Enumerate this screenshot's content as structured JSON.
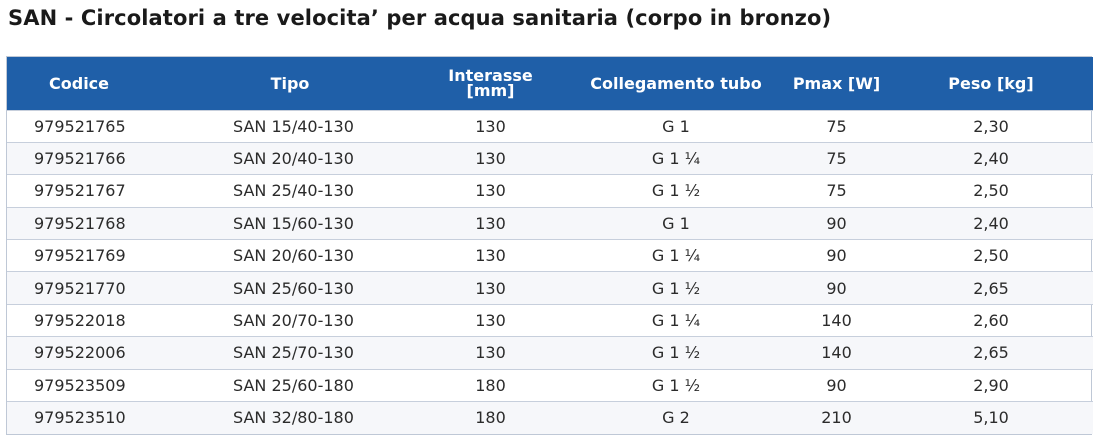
{
  "title": "SAN - Circolatori a tre velocita’ per acqua sanitaria (corpo in bronzo)",
  "table": {
    "headers": {
      "codice": "Codice",
      "tipo": "Tipo",
      "interasse_line1": "Interasse",
      "interasse_line2": "[mm]",
      "collegamento": "Collegamento tubo",
      "pmax": "Pmax [W]",
      "peso": "Peso [kg]"
    },
    "rows": [
      {
        "codice": "979521765",
        "tipo": "SAN 15/40-130",
        "interasse": "130",
        "collegamento": "G 1",
        "pmax": "75",
        "peso": "2,30"
      },
      {
        "codice": "979521766",
        "tipo": "SAN 20/40-130",
        "interasse": "130",
        "collegamento": "G 1 ¼",
        "pmax": "75",
        "peso": "2,40"
      },
      {
        "codice": "979521767",
        "tipo": "SAN 25/40-130",
        "interasse": "130",
        "collegamento": "G 1 ½",
        "pmax": "75",
        "peso": "2,50"
      },
      {
        "codice": "979521768",
        "tipo": "SAN 15/60-130",
        "interasse": "130",
        "collegamento": "G 1",
        "pmax": "90",
        "peso": "2,40"
      },
      {
        "codice": "979521769",
        "tipo": "SAN 20/60-130",
        "interasse": "130",
        "collegamento": "G 1 ¼",
        "pmax": "90",
        "peso": "2,50"
      },
      {
        "codice": "979521770",
        "tipo": "SAN 25/60-130",
        "interasse": "130",
        "collegamento": "G 1 ½",
        "pmax": "90",
        "peso": "2,65"
      },
      {
        "codice": "979522018",
        "tipo": "SAN 20/70-130",
        "interasse": "130",
        "collegamento": "G 1 ¼",
        "pmax": "140",
        "peso": "2,60"
      },
      {
        "codice": "979522006",
        "tipo": "SAN 25/70-130",
        "interasse": "130",
        "collegamento": "G 1 ½",
        "pmax": "140",
        "peso": "2,65"
      },
      {
        "codice": "979523509",
        "tipo": "SAN 25/60-180",
        "interasse": "180",
        "collegamento": "G 1 ½",
        "pmax": "90",
        "peso": "2,90"
      },
      {
        "codice": "979523510",
        "tipo": "SAN 32/80-180",
        "interasse": "180",
        "collegamento": "G 2",
        "pmax": "210",
        "peso": "5,10"
      }
    ]
  },
  "colors": {
    "header_background": "#1f5fa8",
    "header_text": "#ffffff",
    "row_divider": "#c7cfdc"
  }
}
